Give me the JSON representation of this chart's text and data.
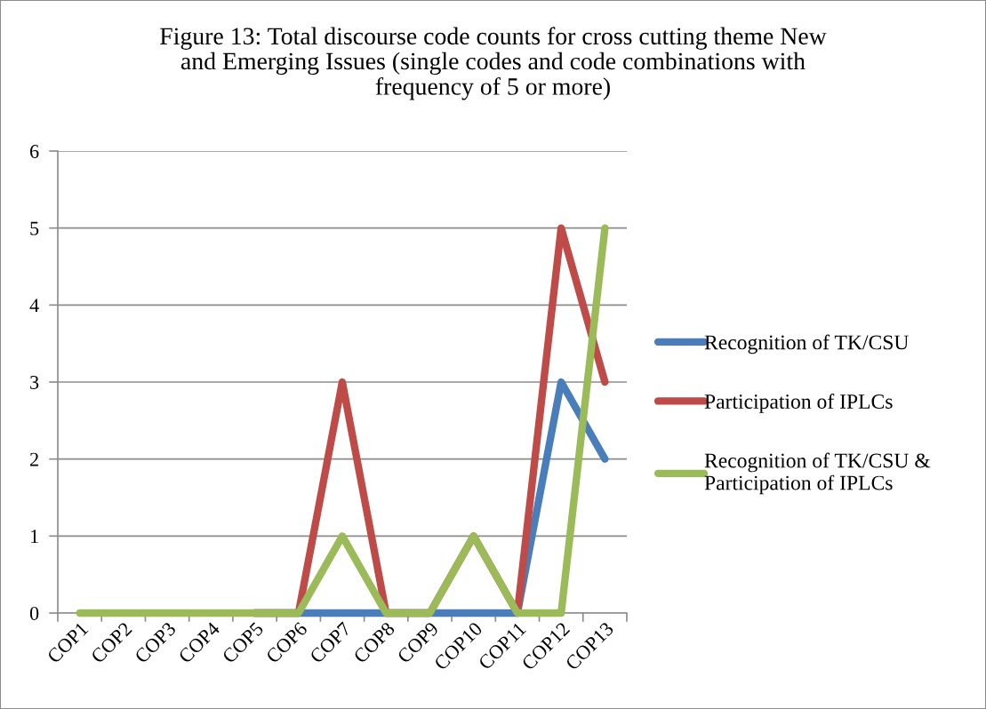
{
  "chart_data": {
    "type": "line",
    "title": "Figure 13: Total discourse code counts for cross cutting theme New\nand Emerging Issues (single codes and code combinations with\nfrequency of 5 or more)",
    "categories": [
      "COP1",
      "COP2",
      "COP3",
      "COP4",
      "COP5",
      "COP6",
      "COP7",
      "COP8",
      "COP9",
      "COP10",
      "COP11",
      "COP12",
      "COP13"
    ],
    "series": [
      {
        "name": "Recognition of TK/CSU",
        "color": "#4a7ebb",
        "values": [
          null,
          null,
          null,
          null,
          0,
          0,
          0,
          0,
          0,
          0,
          0,
          3,
          2
        ]
      },
      {
        "name": "Participation of IPLCs",
        "color": "#be4b48",
        "values": [
          null,
          null,
          null,
          null,
          0,
          0,
          3,
          0,
          0,
          1,
          0,
          5,
          3
        ]
      },
      {
        "name": "Recognition of TK/CSU &\nParticipation of IPLCs",
        "color": "#9bbb59",
        "values": [
          0,
          0,
          0,
          0,
          0,
          0,
          1,
          0,
          0,
          1,
          0,
          0,
          5
        ]
      }
    ],
    "ylim": [
      0,
      6
    ],
    "yticks": [
      0,
      1,
      2,
      3,
      4,
      5,
      6
    ],
    "grid": "y",
    "legend": "right",
    "line_style": "solid"
  }
}
